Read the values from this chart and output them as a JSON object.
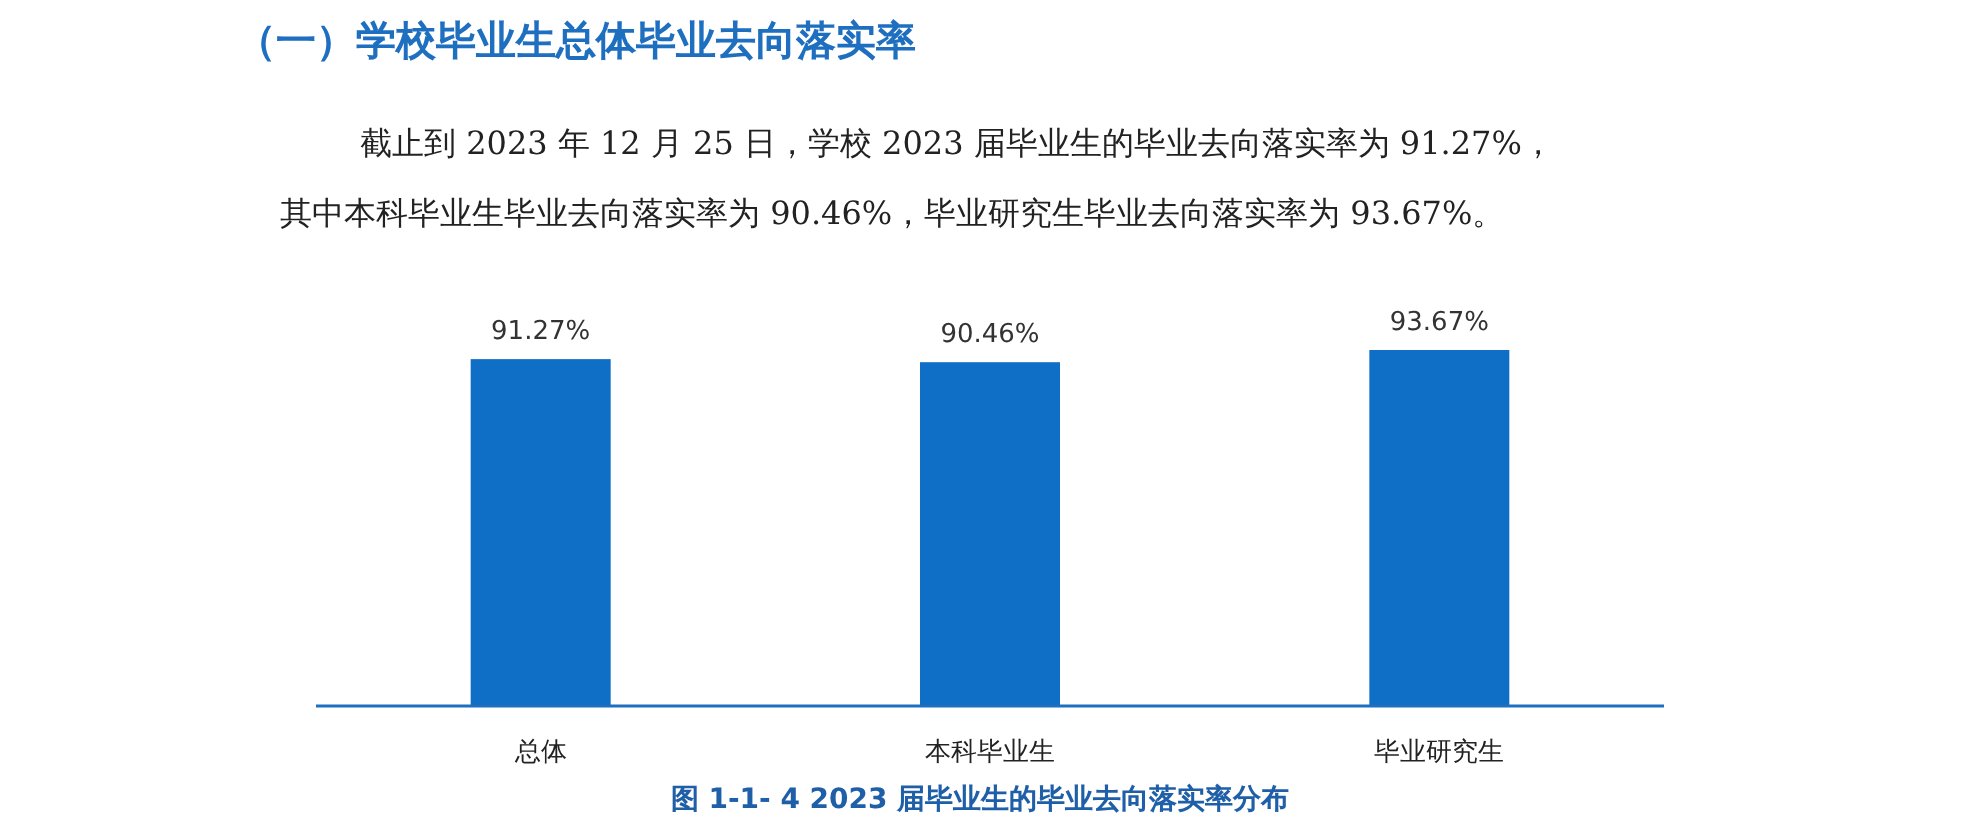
{
  "chart_data": {
    "type": "bar",
    "title": "（一）学校毕业生总体毕业去向落实率",
    "annotations": [
      "截止到 2023 年 12 月 25 日，学校 2023 届毕业生的毕业去向落实率为 91.27%，",
      "其中本科毕业生毕业去向落实率为 90.46%，毕业研究生毕业去向落实率为 93.67%。",
      "图 1-1- 4 2023 届毕业生的毕业去向落实率分布"
    ],
    "categories": [
      "总体",
      "本科毕业生",
      "毕业研究生"
    ],
    "values": [
      91.27,
      90.46,
      93.67
    ],
    "value_labels": [
      "91.27%",
      "90.46%",
      "93.67%"
    ],
    "color": "#0f6fc6"
  }
}
